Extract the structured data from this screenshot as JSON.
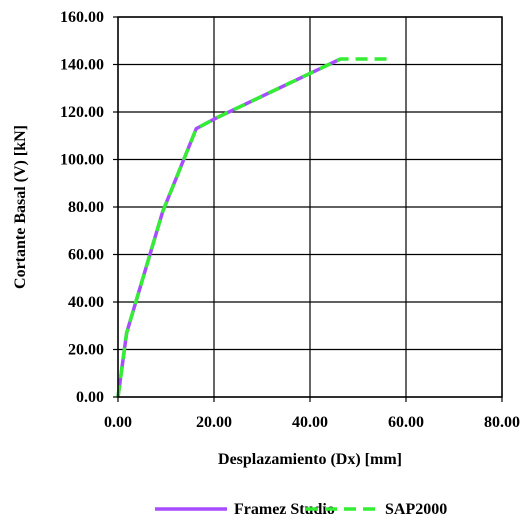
{
  "chart_data": {
    "type": "line",
    "title": "",
    "xlabel": "Desplazamiento (Dx) [mm]",
    "ylabel": "Cortante Basal (V) [kN]",
    "xlim": [
      0,
      80
    ],
    "ylim": [
      0,
      160
    ],
    "x_ticks": [
      "0.00",
      "20.00",
      "40.00",
      "60.00",
      "80.00"
    ],
    "y_ticks": [
      "0.00",
      "20.00",
      "40.00",
      "60.00",
      "80.00",
      "100.00",
      "120.00",
      "140.00",
      "160.00"
    ],
    "grid": true,
    "legend_position": "bottom",
    "series": [
      {
        "name": "Framez Studio",
        "color": "#a64dff",
        "style": "solid",
        "points": [
          [
            0,
            0
          ],
          [
            1.8,
            27
          ],
          [
            9.3,
            78
          ],
          [
            16.3,
            113
          ],
          [
            20.5,
            117.5
          ],
          [
            46.3,
            142.3
          ]
        ]
      },
      {
        "name": "SAP2000",
        "color": "#33ee33",
        "style": "dashed",
        "points": [
          [
            0,
            0
          ],
          [
            1.8,
            27
          ],
          [
            9.3,
            78
          ],
          [
            16.3,
            113
          ],
          [
            20.5,
            117.5
          ],
          [
            46.3,
            142.3
          ],
          [
            56.5,
            142.3
          ]
        ]
      }
    ]
  }
}
